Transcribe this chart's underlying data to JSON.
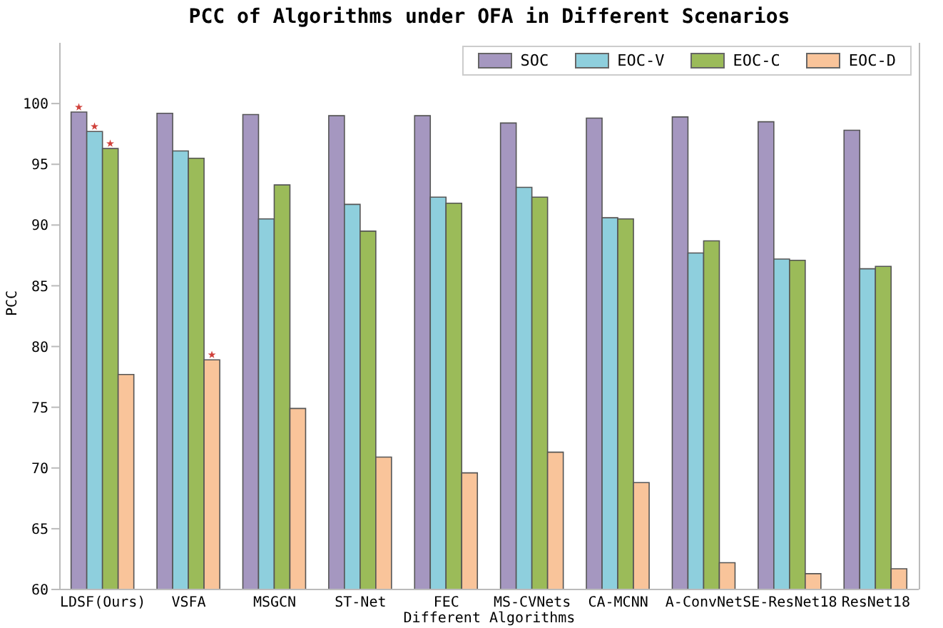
{
  "chart_data": {
    "type": "bar",
    "title": "PCC of Algorithms under OFA in Different Scenarios",
    "xlabel": "Different Algorithms",
    "ylabel": "PCC",
    "categories": [
      "LDSF(Ours)",
      "VSFA",
      "MSGCN",
      "ST-Net",
      "FEC",
      "MS-CVNets",
      "CA-MCNN",
      "A-ConvNet",
      "SE-ResNet18",
      "ResNet18"
    ],
    "series": [
      {
        "name": "SOC",
        "color": "#a597c0",
        "values": [
          99.3,
          99.2,
          99.1,
          99.0,
          99.0,
          98.4,
          98.8,
          98.9,
          98.5,
          97.8
        ],
        "value_labels": [
          "★",
          null,
          null,
          null,
          null,
          null,
          null,
          null,
          null,
          null
        ]
      },
      {
        "name": "EOC-V",
        "color": "#8ecfdd",
        "values": [
          97.7,
          96.1,
          90.5,
          91.7,
          92.3,
          93.1,
          90.6,
          87.7,
          87.2,
          86.4
        ],
        "value_labels": [
          "★",
          null,
          null,
          null,
          null,
          null,
          null,
          null,
          null,
          null
        ]
      },
      {
        "name": "EOC-C",
        "color": "#9bbb59",
        "values": [
          96.3,
          95.5,
          93.3,
          89.5,
          91.8,
          92.3,
          90.5,
          88.7,
          87.1,
          86.6
        ],
        "value_labels": [
          "★",
          null,
          null,
          null,
          null,
          null,
          null,
          null,
          null,
          null
        ]
      },
      {
        "name": "EOC-D",
        "color": "#f9c49a",
        "values": [
          77.7,
          78.9,
          74.9,
          70.9,
          69.6,
          71.3,
          68.8,
          62.2,
          61.3,
          61.7
        ],
        "value_labels": [
          null,
          "★",
          null,
          null,
          null,
          null,
          null,
          null,
          null,
          null
        ]
      }
    ],
    "ylim": [
      60,
      105
    ],
    "yticks": [
      60,
      65,
      70,
      75,
      80,
      85,
      90,
      95,
      100
    ],
    "grid": false,
    "legend": "top right"
  }
}
